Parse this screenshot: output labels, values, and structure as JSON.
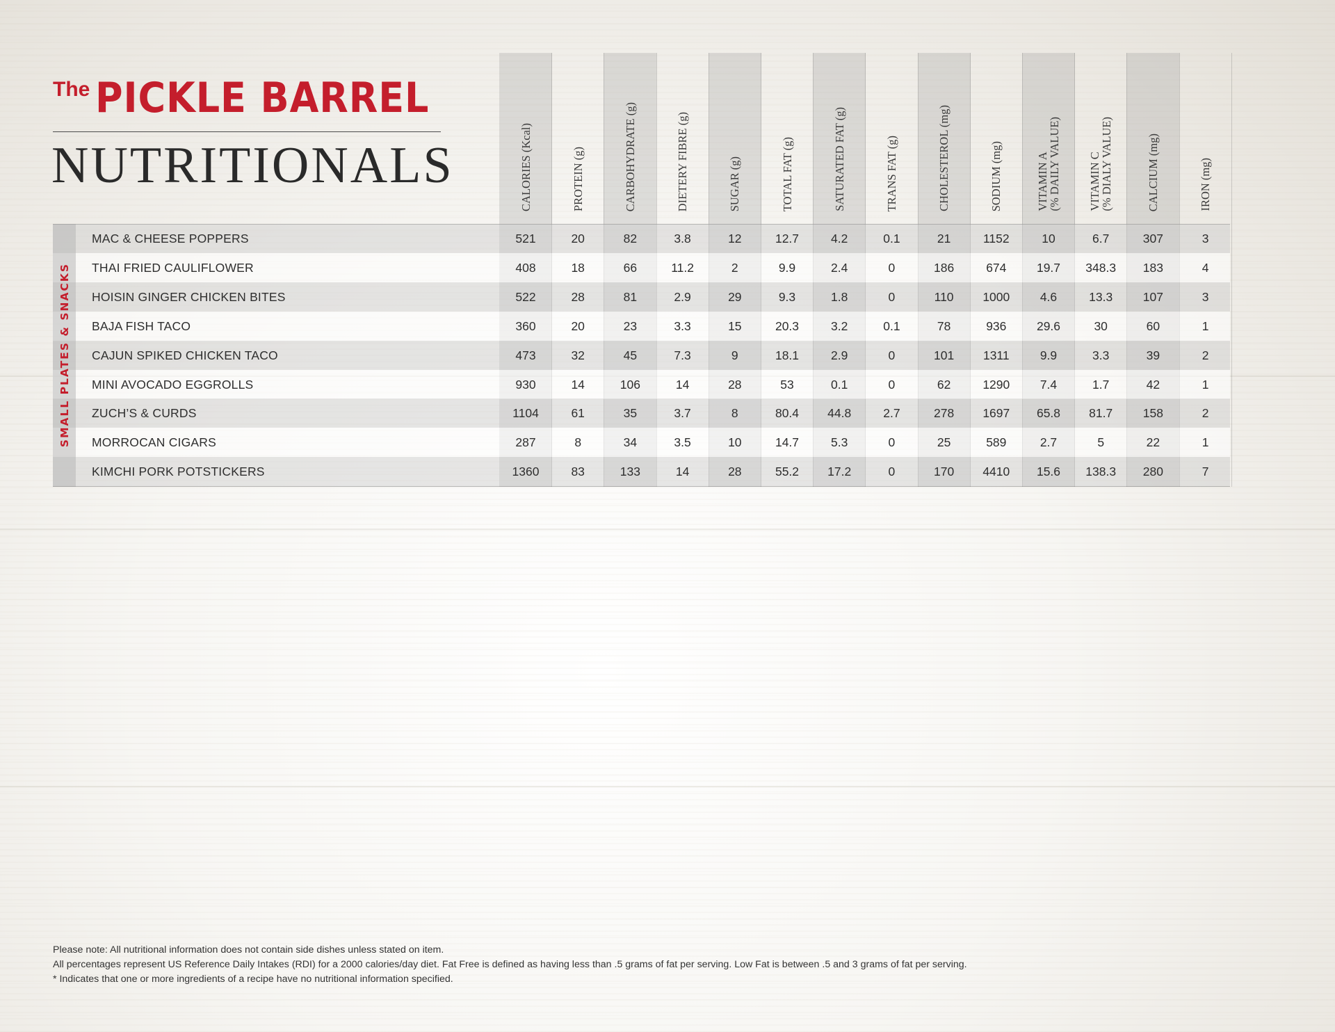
{
  "brand": {
    "the": "The",
    "name": "PICKLE BARREL",
    "color": "#c41e2c"
  },
  "page_title": "NUTRITIONALS",
  "columns": [
    "CALORIES (Kcal)",
    "PROTEIN (g)",
    "CARBOHYDRATE (g)",
    "DIETERY FIBRE (g)",
    "SUGAR (g)",
    "TOTAL FAT (g)",
    "SATURATED FAT (g)",
    "TRANS FAT (g)",
    "CHOLESTEROL (mg)",
    "SODIUM (mg)",
    "VITAMIN A\n(% DAILY VALUE)",
    "VITAMIN C\n(% DIALY VALUE)",
    "CALCIUM (mg)",
    "IRON (mg)"
  ],
  "section": {
    "label": "SMALL PLATES & SNACKS",
    "rows": [
      {
        "item": "MAC & CHEESE POPPERS",
        "values": [
          "521",
          "20",
          "82",
          "3.8",
          "12",
          "12.7",
          "4.2",
          "0.1",
          "21",
          "1152",
          "10",
          "6.7",
          "307",
          "3"
        ]
      },
      {
        "item": "THAI FRIED CAULIFLOWER",
        "values": [
          "408",
          "18",
          "66",
          "11.2",
          "2",
          "9.9",
          "2.4",
          "0",
          "186",
          "674",
          "19.7",
          "348.3",
          "183",
          "4"
        ]
      },
      {
        "item": "HOISIN GINGER CHICKEN BITES",
        "values": [
          "522",
          "28",
          "81",
          "2.9",
          "29",
          "9.3",
          "1.8",
          "0",
          "110",
          "1000",
          "4.6",
          "13.3",
          "107",
          "3"
        ]
      },
      {
        "item": "BAJA FISH TACO",
        "values": [
          "360",
          "20",
          "23",
          "3.3",
          "15",
          "20.3",
          "3.2",
          "0.1",
          "78",
          "936",
          "29.6",
          "30",
          "60",
          "1"
        ]
      },
      {
        "item": "CAJUN SPIKED CHICKEN TACO",
        "values": [
          "473",
          "32",
          "45",
          "7.3",
          "9",
          "18.1",
          "2.9",
          "0",
          "101",
          "1311",
          "9.9",
          "3.3",
          "39",
          "2"
        ]
      },
      {
        "item": "MINI AVOCADO EGGROLLS",
        "values": [
          "930",
          "14",
          "106",
          "14",
          "28",
          "53",
          "0.1",
          "0",
          "62",
          "1290",
          "7.4",
          "1.7",
          "42",
          "1"
        ]
      },
      {
        "item": "ZUCH’S & CURDS",
        "values": [
          "1104",
          "61",
          "35",
          "3.7",
          "8",
          "80.4",
          "44.8",
          "2.7",
          "278",
          "1697",
          "65.8",
          "81.7",
          "158",
          "2"
        ]
      },
      {
        "item": "MORROCAN CIGARS",
        "values": [
          "287",
          "8",
          "34",
          "3.5",
          "10",
          "14.7",
          "5.3",
          "0",
          "25",
          "589",
          "2.7",
          "5",
          "22",
          "1"
        ]
      },
      {
        "item": "KIMCHI PORK POTSTICKERS",
        "values": [
          "1360",
          "83",
          "133",
          "14",
          "28",
          "55.2",
          "17.2",
          "0",
          "170",
          "4410",
          "15.6",
          "138.3",
          "280",
          "7"
        ]
      }
    ]
  },
  "notes": [
    "Please note: All nutritional information does not contain side dishes unless stated on item.",
    "All percentages represent US Reference Daily Intakes (RDI) for a 2000 calories/day diet. Fat Free is defined as having less than .5 grams of fat per serving. Low Fat is between .5 and 3 grams of fat per serving.",
    "* Indicates that one or more ingredients of a recipe have no nutritional information specified."
  ]
}
